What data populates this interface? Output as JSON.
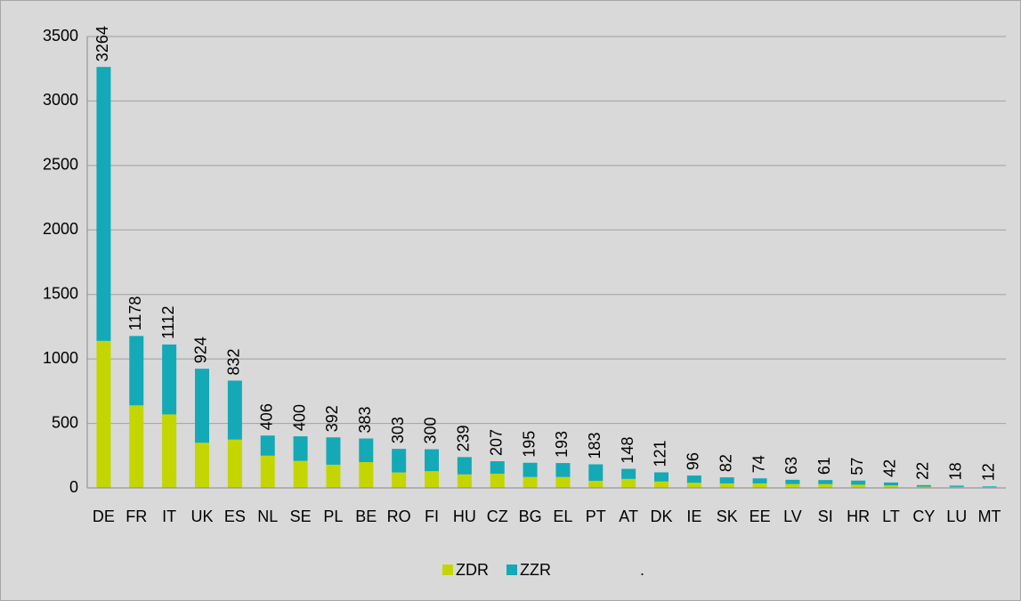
{
  "chart_data": {
    "type": "stacked_bar",
    "categories": [
      "DE",
      "FR",
      "IT",
      "UK",
      "ES",
      "NL",
      "SE",
      "PL",
      "BE",
      "RO",
      "FI",
      "HU",
      "CZ",
      "BG",
      "EL",
      "PT",
      "AT",
      "DK",
      "IE",
      "SK",
      "EE",
      "LV",
      "SI",
      "HR",
      "LT",
      "CY",
      "LU",
      "MT"
    ],
    "series": [
      {
        "name": "ZDR",
        "color": "#c4d600",
        "values": [
          1140,
          640,
          570,
          350,
          375,
          250,
          210,
          180,
          200,
          120,
          130,
          105,
          110,
          85,
          85,
          55,
          70,
          50,
          40,
          35,
          35,
          30,
          30,
          25,
          20,
          10,
          8,
          6
        ]
      },
      {
        "name": "ZZR",
        "color": "#14a9b6",
        "values": [
          2124,
          538,
          542,
          574,
          457,
          156,
          190,
          212,
          183,
          183,
          170,
          134,
          97,
          110,
          108,
          128,
          78,
          71,
          56,
          47,
          39,
          33,
          31,
          32,
          22,
          12,
          10,
          6
        ]
      }
    ],
    "totals": [
      3264,
      1178,
      1112,
      924,
      832,
      406,
      400,
      392,
      383,
      303,
      300,
      239,
      207,
      195,
      193,
      183,
      148,
      121,
      96,
      82,
      74,
      63,
      61,
      57,
      42,
      22,
      18,
      12
    ],
    "legend_note": ".",
    "ylim": [
      0,
      3500
    ],
    "yticks": [
      0,
      500,
      1000,
      1500,
      2000,
      2500,
      3000,
      3500
    ],
    "grid": true
  }
}
